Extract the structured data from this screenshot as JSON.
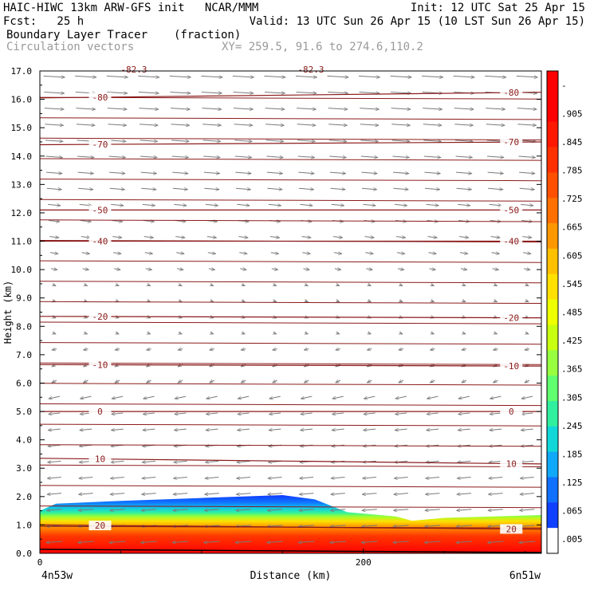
{
  "header": {
    "line1_left": "HAIC-HIWC 13km ARW-GFS init   NCAR/MMM",
    "line1_right": "Init: 12 UTC Sat 25 Apr 15",
    "line2_left": "Fcst:   25 h",
    "line2_right": "Valid: 13 UTC Sun 26 Apr 15 (10 LST Sun 26 Apr 15)",
    "field1_name": "Boundary Layer Tracer",
    "field1_units": "(fraction)",
    "field2_name": "Circulation vectors",
    "xy_text": "XY= 259.5, 91.6 to 274.6,110.2"
  },
  "chart_data": {
    "type": "heatmap",
    "ylabel": "Height (km)",
    "xlabel": "Distance (km)",
    "ylim": [
      0,
      17
    ],
    "yticks": [
      "0.0",
      "1.0",
      "2.0",
      "3.0",
      "4.0",
      "5.0",
      "6.0",
      "7.0",
      "8.0",
      "9.0",
      "10.0",
      "11.0",
      "12.0",
      "13.0",
      "14.0",
      "15.0",
      "16.0",
      "17.0"
    ],
    "xlim": [
      0,
      310
    ],
    "xticks": [
      {
        "value": 0,
        "label": "0"
      },
      {
        "value": 200,
        "label": "200"
      }
    ],
    "x_end_labels": {
      "left": "4n53w",
      "right": "6n51w"
    },
    "colorbar": {
      "labels": [
        "-",
        ".905",
        ".845",
        ".785",
        ".725",
        ".665",
        ".605",
        ".545",
        ".485",
        ".425",
        ".365",
        ".305",
        ".245",
        ".185",
        ".125",
        ".065",
        ".005"
      ],
      "colors": [
        "#ff0000",
        "#ff0000",
        "#ff1800",
        "#ff3000",
        "#ff5000",
        "#ff7000",
        "#ff9800",
        "#ffc000",
        "#ffe000",
        "#eeff00",
        "#c8ff10",
        "#98ff40",
        "#60ff70",
        "#30f0a0",
        "#10d8d8",
        "#10a8f8",
        "#1070ff",
        "#1040ff",
        "#ffffff"
      ]
    },
    "tracer_top_km": [
      {
        "x": 0,
        "z": 1.5
      },
      {
        "x": 10,
        "z": 1.75
      },
      {
        "x": 50,
        "z": 1.85
      },
      {
        "x": 100,
        "z": 1.95
      },
      {
        "x": 150,
        "z": 2.05
      },
      {
        "x": 170,
        "z": 1.9
      },
      {
        "x": 190,
        "z": 1.45
      },
      {
        "x": 220,
        "z": 1.3
      },
      {
        "x": 230,
        "z": 1.15
      },
      {
        "x": 250,
        "z": 1.25
      },
      {
        "x": 310,
        "z": 1.35
      }
    ],
    "isotherms": [
      {
        "label": "20",
        "z0": 1.0,
        "z1": 0.85
      },
      {
        "label": "10",
        "z0": 3.35,
        "z1": 3.15
      },
      {
        "label": "0",
        "z0": 5.0,
        "z1": 5.0
      },
      {
        "label": "-10",
        "z0": 6.65,
        "z1": 6.6
      },
      {
        "label": "-20",
        "z0": 8.35,
        "z1": 8.3
      },
      {
        "label": "-40",
        "z0": 11.0,
        "z1": 11.0
      },
      {
        "label": "-50",
        "z0": 12.1,
        "z1": 12.1
      },
      {
        "label": "-70",
        "z0": 14.4,
        "z1": 14.5
      },
      {
        "label": "-80",
        "z0": 16.05,
        "z1": 16.25
      }
    ],
    "top_labels": [
      "-82.3",
      "-82.3"
    ]
  }
}
